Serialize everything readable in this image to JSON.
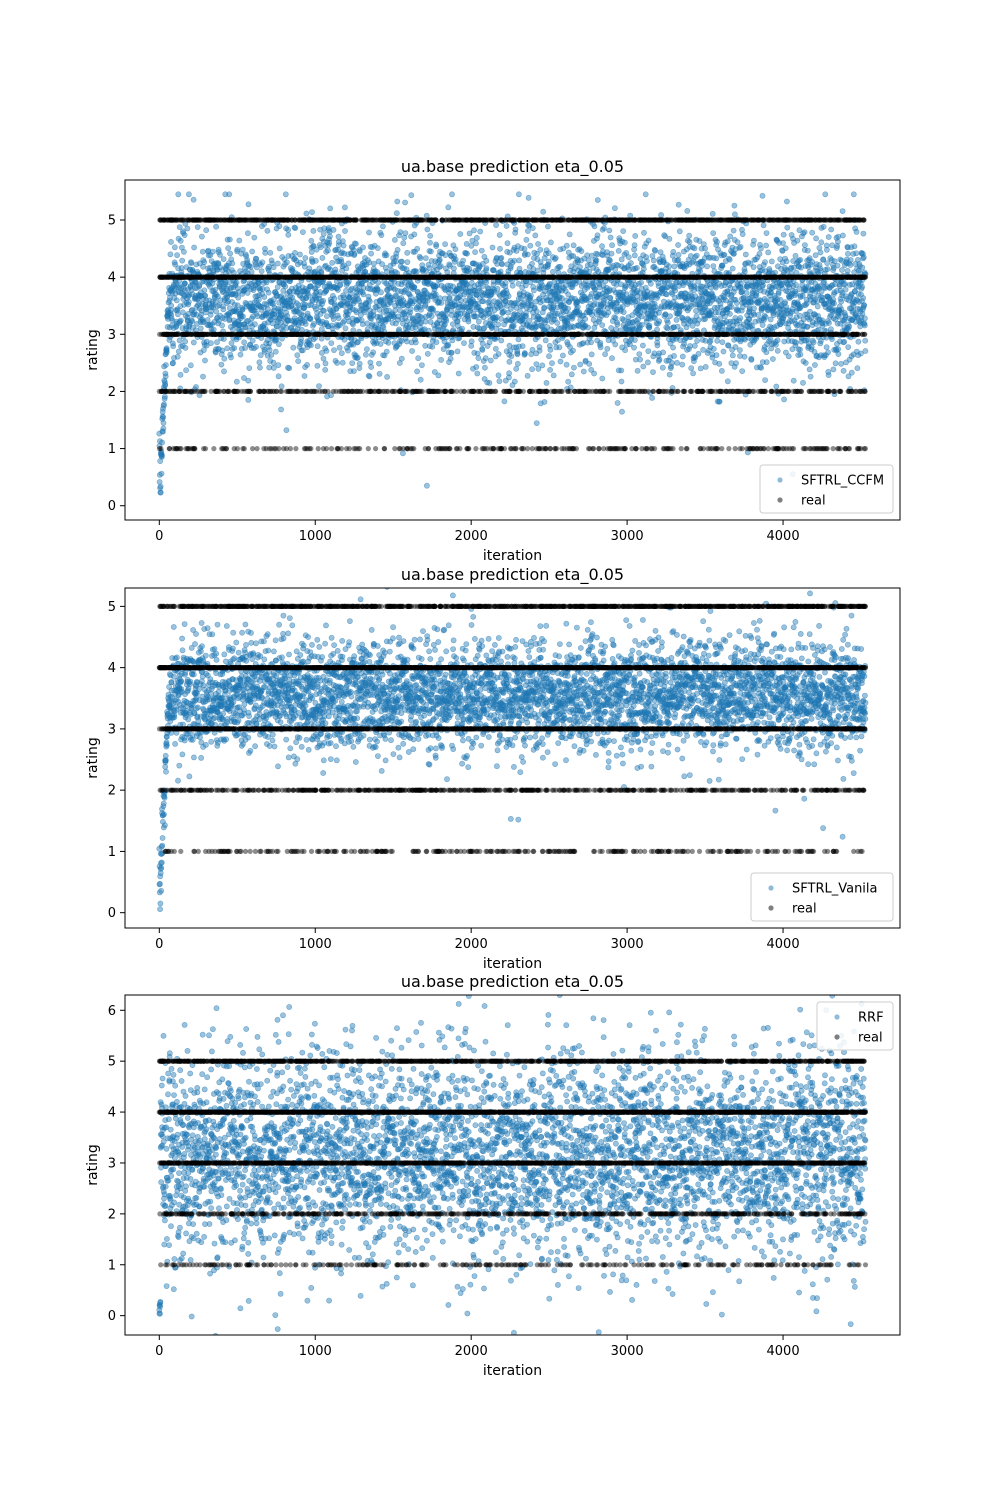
{
  "colors": {
    "predicted": "#1f77b4",
    "real": "#000000",
    "legend_border": "#cccccc"
  },
  "chart_data": [
    {
      "type": "scatter",
      "title": "ua.base prediction eta_0.05",
      "xlabel": "iteration",
      "ylabel": "rating",
      "xlim": [
        -220,
        4750
      ],
      "ylim": [
        -0.25,
        5.7
      ],
      "xticks": [
        0,
        1000,
        2000,
        3000,
        4000
      ],
      "yticks": [
        0,
        1,
        2,
        3,
        4,
        5
      ],
      "grid": false,
      "legend_position": "lower-right",
      "series": [
        {
          "name": "SFTRL_CCFM",
          "marker": "point",
          "center": 3.6,
          "spread": 0.55,
          "warmup_from": 0,
          "outlier_rate": 0.05,
          "density_per_1000": 1100
        },
        {
          "name": "real",
          "marker": "point",
          "levels": [
            1,
            2,
            3,
            4,
            5
          ],
          "level_probability": [
            0.06,
            0.11,
            0.27,
            0.34,
            0.22
          ]
        }
      ],
      "n_iterations": 4530
    },
    {
      "type": "scatter",
      "title": "ua.base prediction eta_0.05",
      "xlabel": "iteration",
      "ylabel": "rating",
      "xlim": [
        -220,
        4750
      ],
      "ylim": [
        -0.25,
        5.3
      ],
      "xticks": [
        0,
        1000,
        2000,
        3000,
        4000
      ],
      "yticks": [
        0,
        1,
        2,
        3,
        4,
        5
      ],
      "grid": false,
      "legend_position": "lower-right",
      "series": [
        {
          "name": "SFTRL_Vanila",
          "marker": "point",
          "center": 3.55,
          "spread": 0.42,
          "warmup_from": 0,
          "outlier_rate": 0.03,
          "density_per_1000": 1100
        },
        {
          "name": "real",
          "marker": "point",
          "levels": [
            1,
            2,
            3,
            4,
            5
          ],
          "level_probability": [
            0.06,
            0.11,
            0.27,
            0.34,
            0.22
          ]
        }
      ],
      "n_iterations": 4530
    },
    {
      "type": "scatter",
      "title": "ua.base prediction eta_0.05",
      "xlabel": "iteration",
      "ylabel": "rating",
      "xlim": [
        -220,
        4750
      ],
      "ylim": [
        -0.38,
        6.3
      ],
      "xticks": [
        0,
        1000,
        2000,
        3000,
        4000
      ],
      "yticks": [
        0,
        1,
        2,
        3,
        4,
        5,
        6
      ],
      "grid": false,
      "legend_position": "upper-right",
      "series": [
        {
          "name": "RRF",
          "marker": "point",
          "center": 3.05,
          "spread": 0.95,
          "warmup_from": 0,
          "outlier_rate": 0.03,
          "density_per_1000": 1100
        },
        {
          "name": "real",
          "marker": "point",
          "levels": [
            1,
            2,
            3,
            4,
            5
          ],
          "level_probability": [
            0.06,
            0.11,
            0.27,
            0.34,
            0.22
          ]
        }
      ],
      "n_iterations": 4530
    }
  ]
}
